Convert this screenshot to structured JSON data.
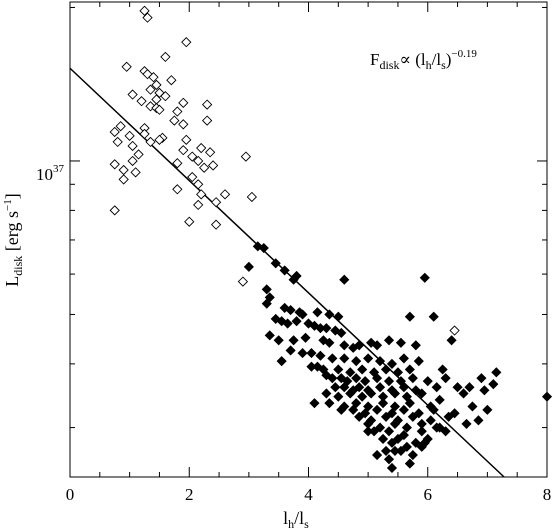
{
  "chart_data": {
    "type": "scatter",
    "title": "",
    "xlabel": {
      "main": "l",
      "sub1": "h",
      "mid": "/l",
      "sub2": "s"
    },
    "ylabel": {
      "main": "L",
      "sub": "disk",
      "unit_open": " [erg s",
      "unit_sup": "−1",
      "unit_close": "]"
    },
    "annotation": {
      "main": "F",
      "sub": "disk",
      "mid": "∝ (l",
      "sub2": "h",
      "mid2": "/l",
      "sub3": "s",
      "close": ")",
      "sup": "−0.19"
    },
    "xlim": [
      0,
      8
    ],
    "ylim": [
      2.4e+36,
      2.05e+37
    ],
    "yscale": "log",
    "x_ticks": [
      "0",
      "2",
      "4",
      "6",
      "8"
    ],
    "y_tick": {
      "value": 1e+37,
      "label_base": "10",
      "label_exp": "37"
    },
    "fit_line": {
      "x": [
        0,
        7.28
      ],
      "y": [
        1.52e+37,
        2.4e+36
      ]
    },
    "series": [
      {
        "marker": "open-diamond",
        "x": [
          1.25,
          1.3,
          1.95,
          1.6,
          0.95,
          1.25,
          1.3,
          1.4,
          1.7,
          1.45,
          1.5,
          1.6,
          1.35,
          1.45,
          1.9,
          2.3,
          1.05,
          1.2,
          1.35,
          1.45,
          1.5,
          1.8,
          1.9,
          2.3,
          1.25,
          1.75,
          0.85,
          1.0,
          1.55,
          1.95,
          0.75,
          1.25,
          1.5,
          1.35,
          1.05,
          1.9,
          2.2,
          2.35,
          2.05,
          0.8,
          1.15,
          2.95,
          1.05,
          1.8,
          2.15,
          0.75,
          2.4,
          2.25,
          0.9,
          1.1,
          2.05,
          0.9,
          2.15,
          1.8,
          2.2,
          2.6,
          3.05,
          2.45,
          2.15,
          0.75,
          2.0,
          2.45,
          2.9,
          6.45
        ],
        "y": [
          1.97e+37,
          1.91e+37,
          1.71e+37,
          1.6e+37,
          1.53e+37,
          1.5e+37,
          1.48e+37,
          1.46e+37,
          1.44e+37,
          1.41e+37,
          1.36e+37,
          1.34e+37,
          1.38e+37,
          1.32e+37,
          1.3e+37,
          1.29e+37,
          1.35e+37,
          1.31e+37,
          1.28e+37,
          1.27e+37,
          1.26e+37,
          1.25e+37,
          1.18e+37,
          1.2e+37,
          1.16e+37,
          1.2e+37,
          1.17e+37,
          1.12e+37,
          1.11e+37,
          1.1e+37,
          1.14e+37,
          1.13e+37,
          1.1e+37,
          1.09e+37,
          1.07e+37,
          1.05e+37,
          1.06e+37,
          1.04e+37,
          1.02e+37,
          1.09e+37,
          1.03e+37,
          1.02e+37,
          1e+37,
          9.9e+36,
          1e+37,
          9.85e+36,
          9.8e+36,
          9.7e+36,
          9.6e+36,
          9.5e+36,
          9.3e+36,
          9.2e+36,
          9e+36,
          8.8e+36,
          8.6e+36,
          8.6e+36,
          8.5e+36,
          8.3e+36,
          8.2e+36,
          8e+36,
          7.6e+36,
          7.5e+36,
          5.8e+36,
          4.65e+36
        ]
      },
      {
        "marker": "filled-diamond",
        "x": [
          3.15,
          3.25,
          3.45,
          3.0,
          3.6,
          3.8,
          3.75,
          5.95,
          4.6,
          3.3,
          3.35,
          3.3,
          3.6,
          3.7,
          3.85,
          3.9,
          4.15,
          4.35,
          4.5,
          3.45,
          3.55,
          3.65,
          3.8,
          4.0,
          4.1,
          4.2,
          4.3,
          4.45,
          4.55,
          5.7,
          6.1,
          3.35,
          3.5,
          3.75,
          3.95,
          4.25,
          4.35,
          4.6,
          4.75,
          4.85,
          5.05,
          5.15,
          5.35,
          5.55,
          5.8,
          3.7,
          3.9,
          4.05,
          4.2,
          4.4,
          4.6,
          4.8,
          5.0,
          5.2,
          5.4,
          5.6,
          5.85,
          6.4,
          3.55,
          4.05,
          4.15,
          4.25,
          4.5,
          4.7,
          4.9,
          5.1,
          5.3,
          5.5,
          5.7,
          6.25,
          4.3,
          4.4,
          4.55,
          4.65,
          4.8,
          4.95,
          5.15,
          5.35,
          5.55,
          5.75,
          6.0,
          6.3,
          6.5,
          6.9,
          7.15,
          4.45,
          4.6,
          4.75,
          4.85,
          5.0,
          5.2,
          5.4,
          5.6,
          5.8,
          6.15,
          6.7,
          7.1,
          4.3,
          4.5,
          4.7,
          4.9,
          5.05,
          5.25,
          5.45,
          5.65,
          5.9,
          6.2,
          6.6,
          6.95,
          8.0,
          4.1,
          4.35,
          4.6,
          4.8,
          5.0,
          5.25,
          5.45,
          5.7,
          6.05,
          4.55,
          4.75,
          4.95,
          5.15,
          5.4,
          5.6,
          5.85,
          6.1,
          6.45,
          6.75,
          7.0,
          4.85,
          5.05,
          5.3,
          5.5,
          5.75,
          6.05,
          6.35,
          6.85,
          5.0,
          5.2,
          5.45,
          5.65,
          5.9,
          6.2,
          6.65,
          5.1,
          5.35,
          5.6,
          5.9,
          6.3,
          5.25,
          5.5,
          5.8,
          6.0,
          5.4,
          5.65,
          5.95,
          5.3,
          5.55,
          5.9,
          5.15,
          5.45,
          5.75,
          6.15,
          5.35,
          5.0,
          5.7,
          5.4
        ],
        "y": [
          6.8e+36,
          6.75e+36,
          6.3e+36,
          6.2e+36,
          6.1e+36,
          5.95e+36,
          5.85e+36,
          5.9e+36,
          5.85e+36,
          5.6e+36,
          5.4e+36,
          5.25e+36,
          5.15e+36,
          5.1e+36,
          5.05e+36,
          5e+36,
          5.05e+36,
          5e+36,
          4.95e+36,
          4.9e+36,
          4.85e+36,
          4.8e+36,
          4.85e+36,
          4.8e+36,
          4.75e+36,
          4.7e+36,
          4.7e+36,
          4.65e+36,
          4.6e+36,
          4.95e+36,
          4.95e+36,
          4.55e+36,
          4.45e+36,
          4.45e+36,
          4.5e+36,
          4.45e+36,
          4.4e+36,
          4.35e+36,
          4.3e+36,
          4.35e+36,
          4.4e+36,
          4.35e+36,
          4.45e+36,
          4.4e+36,
          4.35e+36,
          4.25e+36,
          4.2e+36,
          4.2e+36,
          4.15e+36,
          4.1e+36,
          4.1e+36,
          4.05e+36,
          4.1e+36,
          4.05e+36,
          4e+36,
          4.1e+36,
          4.05e+36,
          4.45e+36,
          4.05e+36,
          3.95e+36,
          3.95e+36,
          3.9e+36,
          3.9e+36,
          3.85e+36,
          3.9e+36,
          3.85e+36,
          3.9e+36,
          3.85e+36,
          3.9e+36,
          3.9e+36,
          3.8e+36,
          3.75e+36,
          3.75e+36,
          3.7e+36,
          3.75e+36,
          3.7e+36,
          3.75e+36,
          3.7e+36,
          3.7e+36,
          3.75e+36,
          3.7e+36,
          3.75e+36,
          3.6e+36,
          3.75e+36,
          3.85e+36,
          3.6e+36,
          3.6e+36,
          3.55e+36,
          3.6e+36,
          3.55e+36,
          3.6e+36,
          3.55e+36,
          3.6e+36,
          3.55e+36,
          3.6e+36,
          3.6e+36,
          3.65e+36,
          3.5e+36,
          3.45e+36,
          3.5e+36,
          3.45e+36,
          3.5e+36,
          3.45e+36,
          3.5e+36,
          3.45e+36,
          3.5e+36,
          3.4e+36,
          3.5e+36,
          3.55e+36,
          3.45e+36,
          3.35e+36,
          3.35e+36,
          3.3e+36,
          3.35e+36,
          3.3e+36,
          3.35e+36,
          3.3e+36,
          3.35e+36,
          3.3e+36,
          3.25e+36,
          3.25e+36,
          3.2e+36,
          3.25e+36,
          3.2e+36,
          3.25e+36,
          3.2e+36,
          3.25e+36,
          3.2e+36,
          3.3e+36,
          3.25e+36,
          3.15e+36,
          3.1e+36,
          3.15e+36,
          3.1e+36,
          3.15e+36,
          3.1e+36,
          3.15e+36,
          3.1e+36,
          3.05e+36,
          3e+36,
          3.05e+36,
          3e+36,
          3.05e+36,
          3e+36,
          3.05e+36,
          2.95e+36,
          2.95e+36,
          2.9e+36,
          2.95e+36,
          2.95e+36,
          2.85e+36,
          2.85e+36,
          2.8e+36,
          2.85e+36,
          2.8e+36,
          2.75e+36,
          2.8e+36,
          2.7e+36,
          2.7e+36,
          2.75e+36,
          2.65e+36,
          2.7e+36,
          2.65e+36,
          3e+36,
          2.6e+36,
          2.95e+36,
          2.55e+36,
          2.5e+36
        ]
      }
    ]
  }
}
